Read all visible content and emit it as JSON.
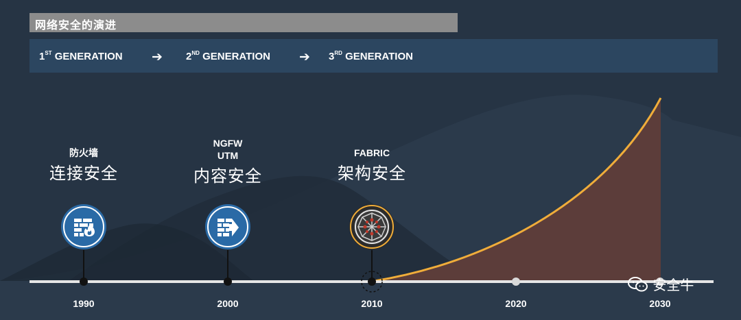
{
  "header": {
    "title": "网络安全的演进"
  },
  "generations": [
    {
      "num": "1",
      "sup": "ST",
      "label": "GENERATION"
    },
    {
      "num": "2",
      "sup": "ND",
      "label": "GENERATION"
    },
    {
      "num": "3",
      "sup": "RD",
      "label": "GENERATION"
    }
  ],
  "arrow_glyph": "➔",
  "eras": [
    {
      "tag_lines": [
        "防火墙"
      ],
      "title": "连接安全",
      "icon": "firewall-fire-icon"
    },
    {
      "tag_lines": [
        "NGFW",
        "UTM"
      ],
      "title": "内容安全",
      "icon": "firewall-arrow-icon"
    },
    {
      "tag_lines": [
        "FABRIC"
      ],
      "title": "架构安全",
      "icon": "fabric-mesh-icon"
    }
  ],
  "timeline": {
    "years": [
      "1990",
      "2000",
      "2010",
      "2020",
      "2030"
    ]
  },
  "watermark": {
    "text": "安全牛",
    "icon": "wechat-icon"
  },
  "colors": {
    "background": "#263444",
    "title_bar": "#8c8c8c",
    "generation_bar": "#2c4660",
    "badge_blue": "#2a6aa6",
    "badge_dark": "#2b2b2b",
    "growth_curve": "#f0ad3a",
    "growth_fill": "#5c3d3a",
    "timeline": "#e0e0e0"
  }
}
